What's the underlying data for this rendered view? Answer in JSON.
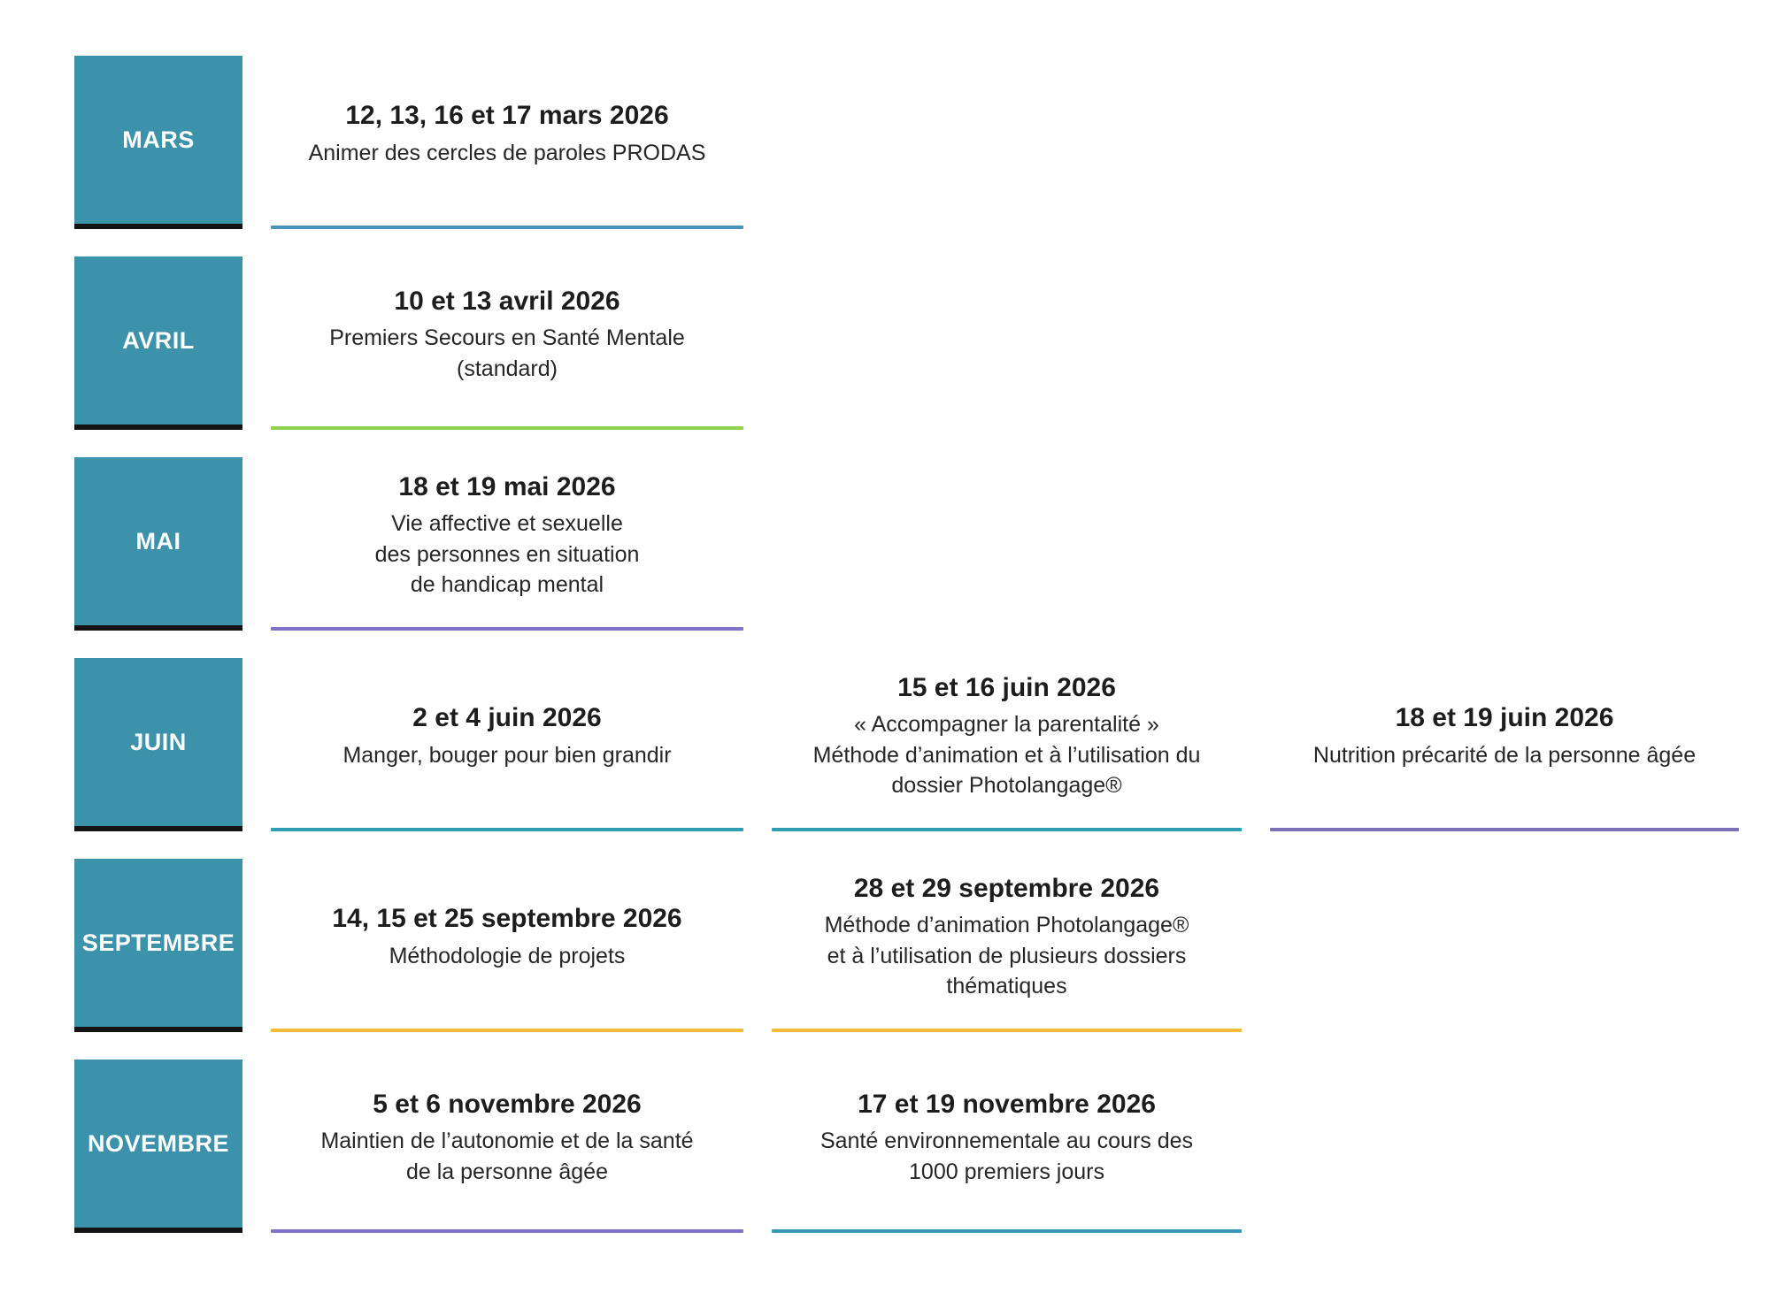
{
  "page": {
    "background": "#ffffff",
    "month_box_color": "#3b92aa",
    "month_box_border_color": "#131313",
    "text_color": "#1d1d1d"
  },
  "rows": [
    {
      "month": "MARS",
      "events": [
        {
          "column": 1,
          "date": "12, 13, 16 et 17 mars 2026",
          "title_lines": [
            "Animer des cercles de paroles PRODAS"
          ],
          "underline_color": "#4a93bd"
        }
      ]
    },
    {
      "month": "AVRIL",
      "events": [
        {
          "column": 1,
          "date": "10 et 13 avril 2026",
          "title_lines": [
            "Premiers Secours en Santé Mentale",
            "(standard)"
          ],
          "underline_color": "#8ed24d"
        }
      ]
    },
    {
      "month": "MAI",
      "events": [
        {
          "column": 1,
          "date": "18 et 19  mai 2026",
          "title_lines": [
            "Vie affective et sexuelle",
            "des personnes en situation",
            "de handicap mental"
          ],
          "underline_color": "#8271c6"
        }
      ]
    },
    {
      "month": "JUIN",
      "events": [
        {
          "column": 1,
          "date": "2 et 4 juin 2026",
          "title_lines": [
            "Manger, bouger pour bien grandir"
          ],
          "underline_color": "#2e9db3"
        },
        {
          "column": 2,
          "date": "15 et 16 juin 2026",
          "title_lines": [
            "« Accompagner la parentalité »",
            "Méthode d’animation et à l’utilisation du",
            "dossier Photolangage®"
          ],
          "underline_color": "#2e9db3"
        },
        {
          "column": 3,
          "date": "18 et 19 juin 2026",
          "title_lines": [
            "Nutrition précarité de la personne âgée"
          ],
          "underline_color": "#7a70b8"
        }
      ]
    },
    {
      "month": "SEPTEMBRE",
      "events": [
        {
          "column": 1,
          "date": "14, 15 et 25 septembre 2026",
          "title_lines": [
            "Méthodologie de projets"
          ],
          "underline_color": "#f4ba3a"
        },
        {
          "column": 2,
          "date": "28 et 29 septembre 2026",
          "title_lines": [
            "Méthode d’animation Photolangage®",
            "et à l’utilisation de plusieurs dossiers",
            "thématiques"
          ],
          "underline_color": "#f4ba3a"
        }
      ]
    },
    {
      "month": "NOVEMBRE",
      "events": [
        {
          "column": 1,
          "date": "5  et 6 novembre 2026",
          "title_lines": [
            "Maintien de l’autonomie et de la santé",
            "de la personne âgée"
          ],
          "underline_color": "#8271c6"
        },
        {
          "column": 2,
          "date": "17  et 19 novembre 2026",
          "title_lines": [
            "Santé environnementale au cours des",
            "1000 premiers jours"
          ],
          "underline_color": "#3998b4"
        }
      ]
    }
  ]
}
